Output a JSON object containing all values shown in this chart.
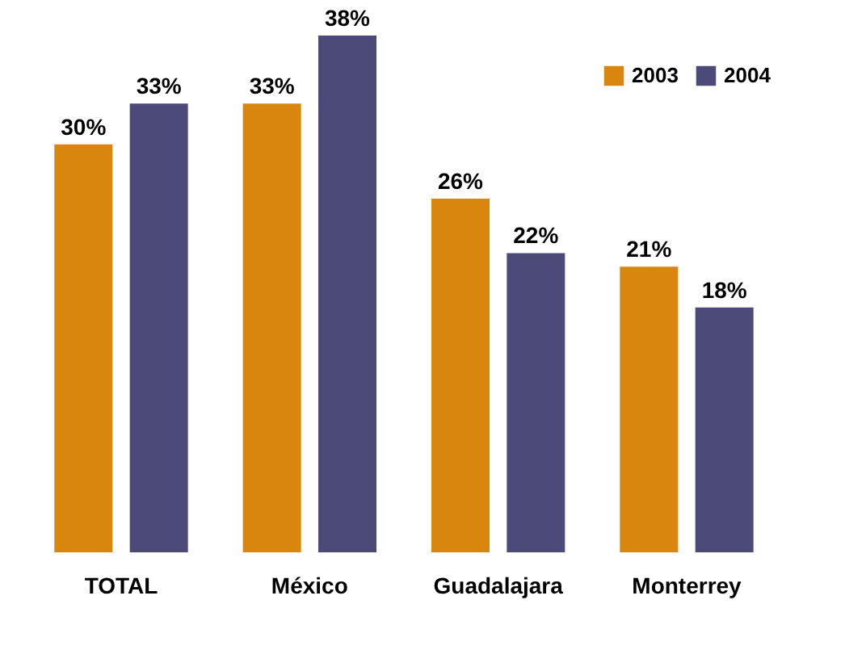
{
  "chart_data": {
    "type": "bar",
    "categories": [
      "TOTAL",
      "México",
      "Guadalajara",
      "Monterrey"
    ],
    "series": [
      {
        "name": "2003",
        "color": "#d9860f",
        "values": [
          30,
          33,
          26,
          21
        ],
        "value_labels": [
          "30%",
          "33%",
          "26%",
          "21%"
        ]
      },
      {
        "name": "2004",
        "color": "#4b4a78",
        "values": [
          33,
          38,
          22,
          18
        ],
        "value_labels": [
          "33%",
          "38%",
          "22%",
          "18%"
        ]
      }
    ],
    "legend": "top right",
    "grid": false,
    "tick_labels": "x"
  }
}
